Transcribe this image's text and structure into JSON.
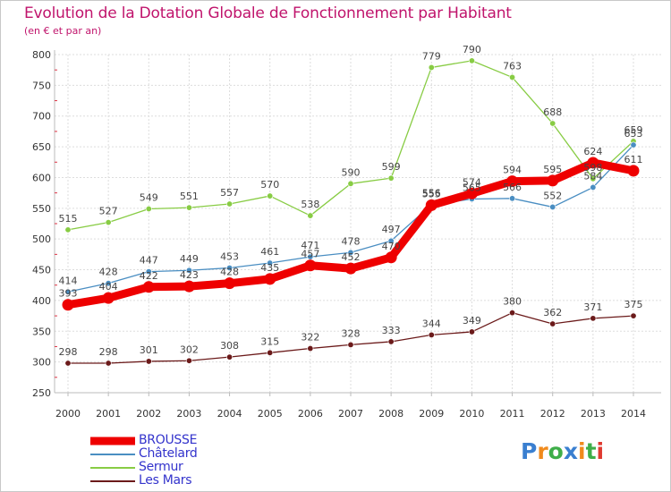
{
  "chart_data": {
    "type": "line",
    "title": "Evolution de la Dotation Globale de Fonctionnement par Habitant",
    "subtitle": "(en € et par an)",
    "xlabel": "",
    "ylabel": "",
    "categories": [
      "2000",
      "2001",
      "2002",
      "2003",
      "2004",
      "2005",
      "2006",
      "2007",
      "2008",
      "2009",
      "2010",
      "2011",
      "2012",
      "2013",
      "2014"
    ],
    "ylim": [
      250,
      800
    ],
    "yticks": [
      250,
      300,
      350,
      400,
      450,
      500,
      550,
      600,
      650,
      700,
      750,
      800
    ],
    "grid": true,
    "legend_position": "bottom-left",
    "series": [
      {
        "name": "Sermur",
        "color": "#88cc44",
        "values": [
          515,
          527,
          549,
          551,
          557,
          570,
          538,
          590,
          599,
          779,
          790,
          763,
          688,
          598,
          659
        ]
      },
      {
        "name": "Châtelard",
        "color": "#4a8ec2",
        "values": [
          414,
          428,
          447,
          449,
          453,
          461,
          471,
          478,
          497,
          556,
          565,
          566,
          552,
          584,
          653
        ]
      },
      {
        "name": "Les Mars",
        "color": "#6b1a1a",
        "values": [
          298,
          298,
          301,
          302,
          308,
          315,
          322,
          328,
          333,
          344,
          349,
          380,
          362,
          371,
          375
        ]
      },
      {
        "name": "BROUSSE",
        "color": "#ee0000",
        "values": [
          393,
          404,
          422,
          423,
          428,
          435,
          457,
          452,
          470,
          555,
          574,
          594,
          595,
          624,
          611
        ]
      }
    ]
  },
  "legend": [
    {
      "label": "BROUSSE",
      "color": "#ee0000"
    },
    {
      "label": "Châtelard",
      "color": "#4a8ec2"
    },
    {
      "label": "Sermur",
      "color": "#88cc44"
    },
    {
      "label": "Les Mars",
      "color": "#6b1a1a"
    }
  ],
  "logo": {
    "letters": [
      "P",
      "r",
      "o",
      "x",
      "i",
      "t",
      "i"
    ],
    "colors": [
      "#3a7fd0",
      "#f08a1c",
      "#3fae49",
      "#3a7fd0",
      "#f08a1c",
      "#3fae49",
      "#e03a30"
    ]
  }
}
